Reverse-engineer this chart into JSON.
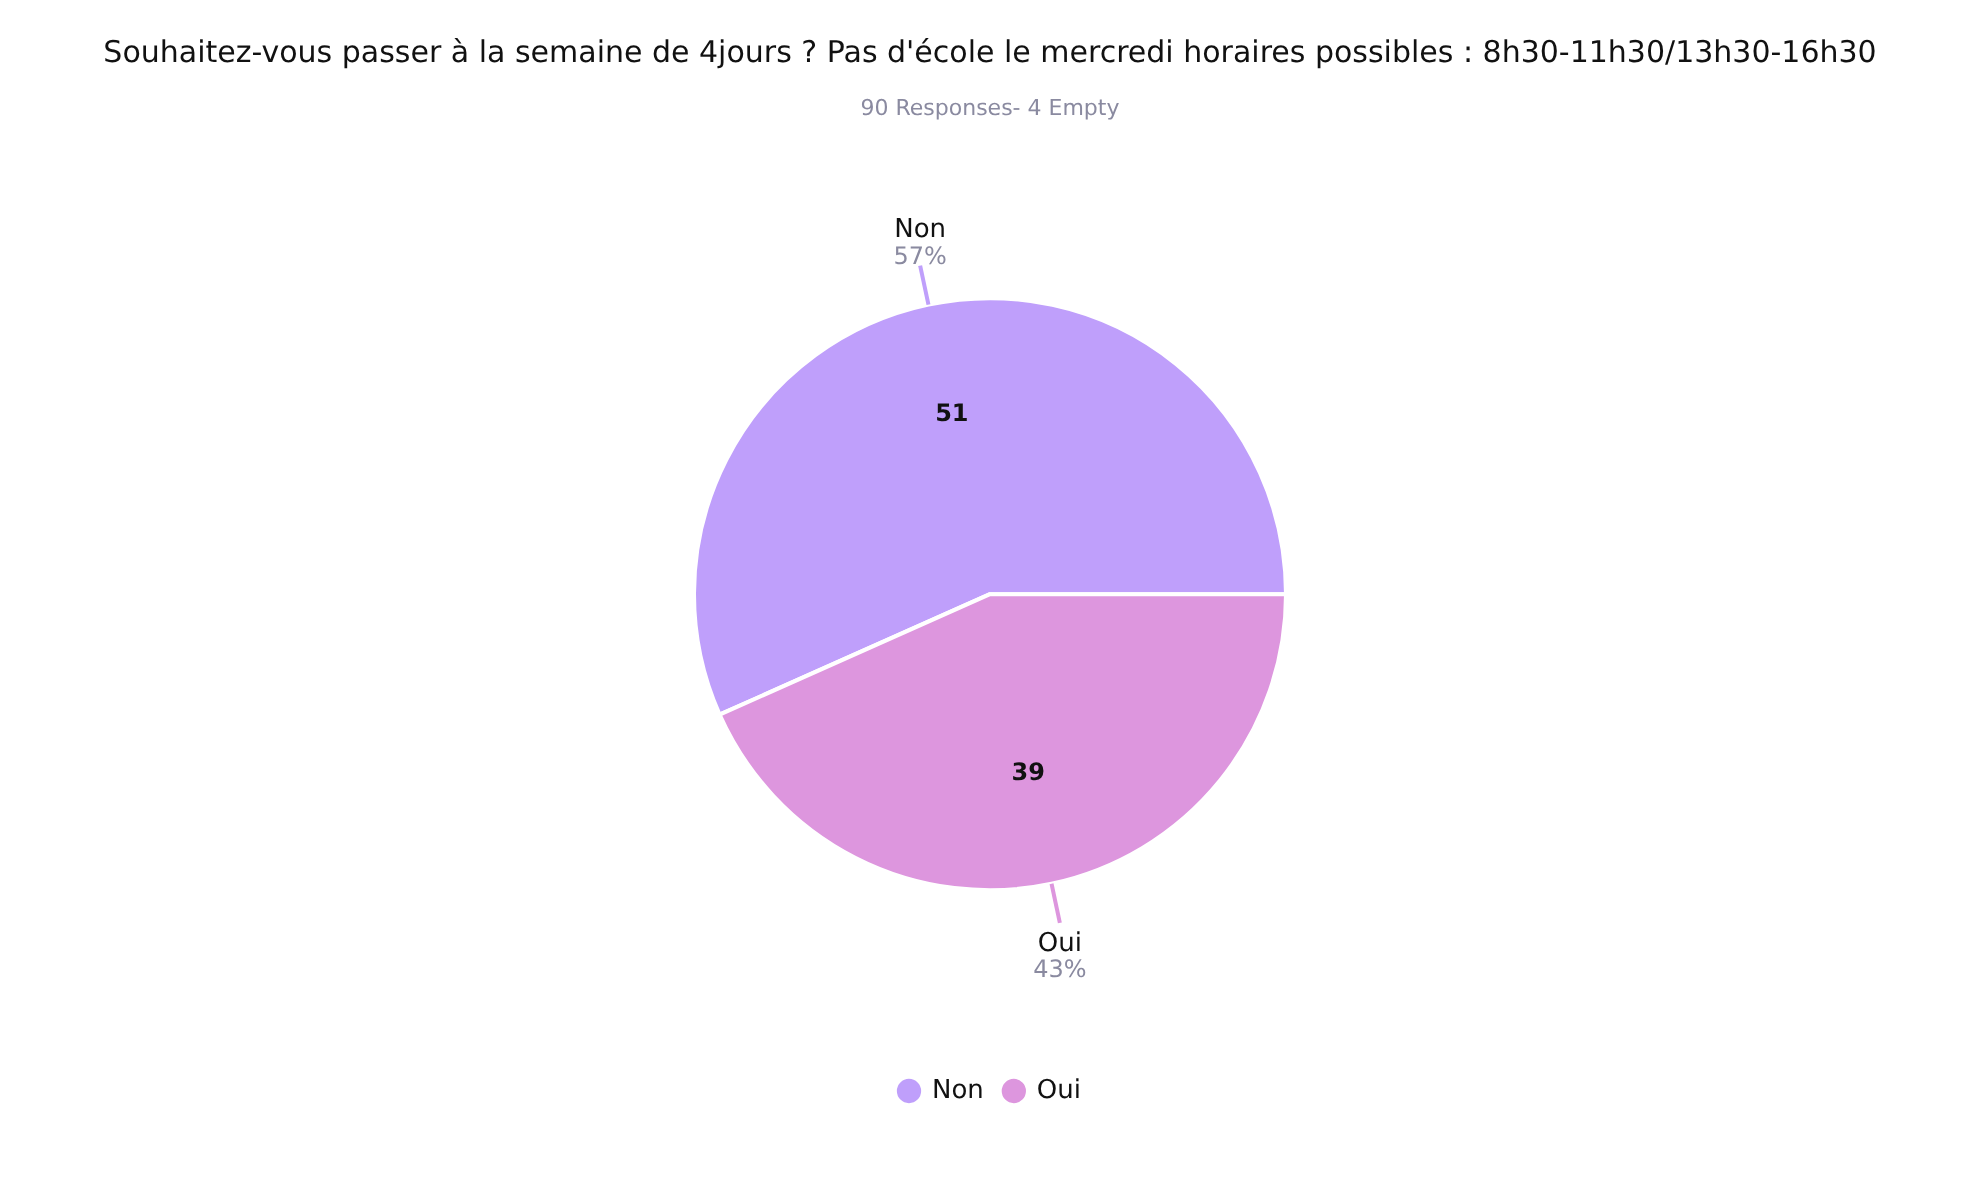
{
  "chart_data": {
    "type": "pie",
    "title": "Souhaitez-vous passer à la semaine de 4jours ? Pas d'école le mercredi horaires possibles : 8h30-11h30/13h30-16h30",
    "subtitle": "90 Responses- 4 Empty",
    "categories": [
      "Non",
      "Oui"
    ],
    "values": [
      51,
      39
    ],
    "colors": [
      "#bf9ffb",
      "#dd96de"
    ],
    "data_labels": true,
    "annotations": [
      {
        "text": "57%",
        "x": "Non"
      },
      {
        "text": "43%",
        "x": "Oui"
      }
    ],
    "legend": "bottom"
  }
}
